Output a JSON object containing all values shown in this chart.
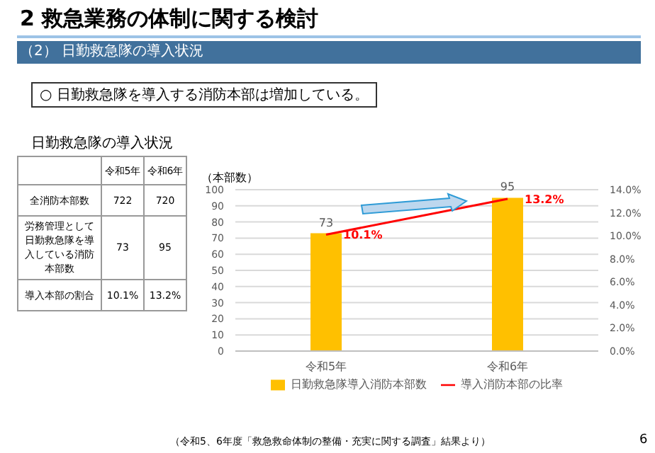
{
  "chart_data": [
    {
      "type": "other",
      "title": "2 救急業務の体制に関する検討",
      "subtitle": "（2） 日勤救急隊の導入状況",
      "annotations": [
        "○ 日勤救急隊を導入する消防本部は増加している。",
        "日勤救急隊の導入状況"
      ],
      "categories": [
        "令和5年",
        "令和6年"
      ],
      "y_categories": [
        "全消防本部数",
        "労務管理として日勤救急隊を導入している消防本部数",
        "導入本部の割合"
      ],
      "cell_labels": [
        [
          "722",
          "720"
        ],
        [
          "73",
          "95"
        ],
        [
          "10.1%",
          "13.2%"
        ]
      ]
    },
    {
      "type": "bar",
      "ylabel": "（本部数）",
      "categories": [
        "令和5年",
        "令和6年"
      ],
      "series": [
        {
          "name": "日勤救急隊導入消防本部数",
          "type": "bar",
          "color": "#ffc000",
          "values": [
            73,
            95
          ],
          "value_labels": [
            "73",
            "95"
          ]
        },
        {
          "name": "導入消防本部の比率",
          "type": "line",
          "axis": "y2",
          "color": "#ff0000",
          "values": [
            10.1,
            13.2
          ],
          "value_labels": [
            "10.1%",
            "13.2%"
          ]
        }
      ],
      "ylim": [
        0,
        100
      ],
      "yticks": [
        0,
        10,
        20,
        30,
        40,
        50,
        60,
        70,
        80,
        90,
        100
      ],
      "y2lim": [
        0,
        14
      ],
      "y2ticks": [
        {
          "value": 0,
          "label": "0.0%"
        },
        {
          "value": 2,
          "label": "2.0%"
        },
        {
          "value": 4,
          "label": "4.0%"
        },
        {
          "value": 6,
          "label": "6.0%"
        },
        {
          "value": 8,
          "label": "8.0%"
        },
        {
          "value": 10,
          "label": "10.0%"
        },
        {
          "value": 12,
          "label": "12.0%"
        },
        {
          "value": 14,
          "label": "14.0%"
        }
      ],
      "grid": "y",
      "legend": "bottom",
      "marker": "none",
      "annotations": [
        "（令和5、6年度「救急救命体制の整備・充実に関する調査」結果より）",
        "6"
      ]
    }
  ]
}
